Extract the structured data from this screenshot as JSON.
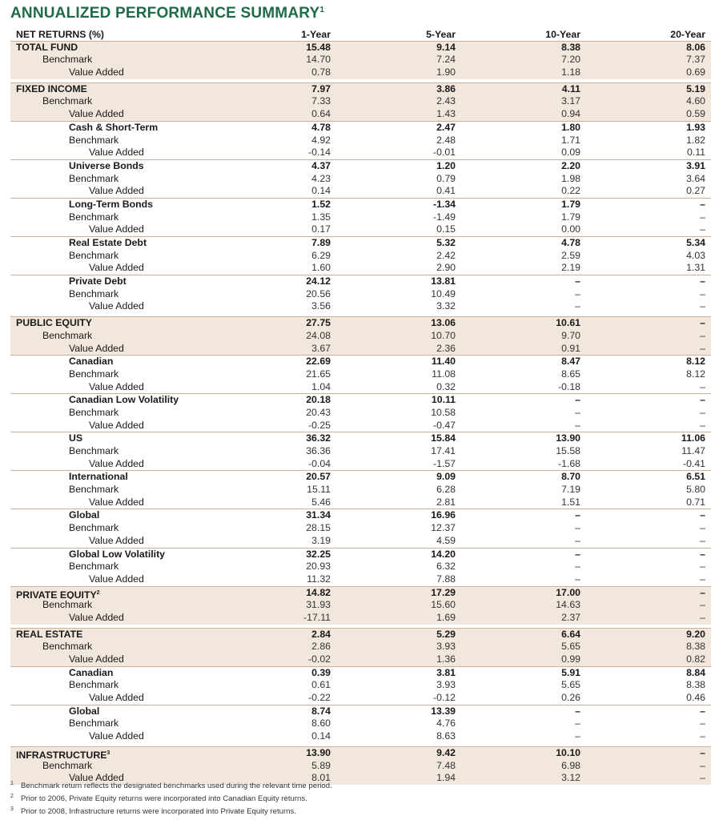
{
  "title": {
    "text": "ANNUALIZED PERFORMANCE SUMMARY",
    "sup": "1"
  },
  "header": {
    "label": "NET RETURNS (%)",
    "cols": [
      "1-Year",
      "5-Year",
      "10-Year",
      "20-Year"
    ]
  },
  "rows": [
    {
      "label": "TOTAL FUND",
      "level": 0,
      "bold": true,
      "shade": true,
      "v": [
        "15.48",
        "9.14",
        "8.38",
        "8.06"
      ]
    },
    {
      "label": "Benchmark",
      "level": 1,
      "shade": true,
      "v": [
        "14.70",
        "7.24",
        "7.20",
        "7.37"
      ]
    },
    {
      "label": "Value Added",
      "level": 2,
      "shade": true,
      "v": [
        "0.78",
        "1.90",
        "1.18",
        "0.69"
      ]
    },
    {
      "gap": true
    },
    {
      "label": "FIXED INCOME",
      "level": 0,
      "bold": true,
      "shade": true,
      "topline": true,
      "v": [
        "7.97",
        "3.86",
        "4.11",
        "5.19"
      ]
    },
    {
      "label": "Benchmark",
      "level": 1,
      "shade": true,
      "v": [
        "7.33",
        "2.43",
        "3.17",
        "4.60"
      ]
    },
    {
      "label": "Value Added",
      "level": 2,
      "shade": true,
      "v": [
        "0.64",
        "1.43",
        "0.94",
        "0.59"
      ]
    },
    {
      "label": "Cash & Short-Term",
      "level": 2,
      "bold": true,
      "topline": true,
      "v": [
        "4.78",
        "2.47",
        "1.80",
        "1.93"
      ]
    },
    {
      "label": "Benchmark",
      "level": 2,
      "v": [
        "4.92",
        "2.48",
        "1.71",
        "1.82"
      ]
    },
    {
      "label": "Value Added",
      "level": 3,
      "v": [
        "-0.14",
        "-0.01",
        "0.09",
        "0.11"
      ]
    },
    {
      "label": "Universe Bonds",
      "level": 2,
      "bold": true,
      "topline": true,
      "v": [
        "4.37",
        "1.20",
        "2.20",
        "3.91"
      ]
    },
    {
      "label": "Benchmark",
      "level": 2,
      "v": [
        "4.23",
        "0.79",
        "1.98",
        "3.64"
      ]
    },
    {
      "label": "Value Added",
      "level": 3,
      "v": [
        "0.14",
        "0.41",
        "0.22",
        "0.27"
      ]
    },
    {
      "label": "Long-Term Bonds",
      "level": 2,
      "bold": true,
      "topline": true,
      "v": [
        "1.52",
        "-1.34",
        "1.79",
        "–"
      ]
    },
    {
      "label": "Benchmark",
      "level": 2,
      "v": [
        "1.35",
        "-1.49",
        "1.79",
        "–"
      ]
    },
    {
      "label": "Value Added",
      "level": 3,
      "v": [
        "0.17",
        "0.15",
        "0.00",
        "–"
      ]
    },
    {
      "label": "Real Estate Debt",
      "level": 2,
      "bold": true,
      "topline": true,
      "v": [
        "7.89",
        "5.32",
        "4.78",
        "5.34"
      ]
    },
    {
      "label": "Benchmark",
      "level": 2,
      "v": [
        "6.29",
        "2.42",
        "2.59",
        "4.03"
      ]
    },
    {
      "label": "Value Added",
      "level": 3,
      "v": [
        "1.60",
        "2.90",
        "2.19",
        "1.31"
      ]
    },
    {
      "label": "Private Debt",
      "level": 2,
      "bold": true,
      "topline": true,
      "v": [
        "24.12",
        "13.81",
        "–",
        "–"
      ]
    },
    {
      "label": "Benchmark",
      "level": 2,
      "v": [
        "20.56",
        "10.49",
        "–",
        "–"
      ]
    },
    {
      "label": "Value Added",
      "level": 3,
      "v": [
        "3.56",
        "3.32",
        "–",
        "–"
      ]
    },
    {
      "gap": true
    },
    {
      "label": "PUBLIC EQUITY",
      "level": 0,
      "bold": true,
      "shade": true,
      "topline": true,
      "v": [
        "27.75",
        "13.06",
        "10.61",
        "–"
      ]
    },
    {
      "label": "Benchmark",
      "level": 1,
      "shade": true,
      "v": [
        "24.08",
        "10.70",
        "9.70",
        "–"
      ]
    },
    {
      "label": "Value Added",
      "level": 2,
      "shade": true,
      "v": [
        "3.67",
        "2.36",
        "0.91",
        "–"
      ]
    },
    {
      "label": "Canadian",
      "level": 2,
      "bold": true,
      "topline": true,
      "v": [
        "22.69",
        "11.40",
        "8.47",
        "8.12"
      ]
    },
    {
      "label": "Benchmark",
      "level": 2,
      "v": [
        "21.65",
        "11.08",
        "8.65",
        "8.12"
      ]
    },
    {
      "label": "Value Added",
      "level": 3,
      "v": [
        "1.04",
        "0.32",
        "-0.18",
        "–"
      ]
    },
    {
      "label": "Canadian Low Volatility",
      "level": 2,
      "bold": true,
      "topline": true,
      "v": [
        "20.18",
        "10.11",
        "–",
        "–"
      ]
    },
    {
      "label": "Benchmark",
      "level": 2,
      "v": [
        "20.43",
        "10.58",
        "–",
        "–"
      ]
    },
    {
      "label": "Value Added",
      "level": 3,
      "v": [
        "-0.25",
        "-0.47",
        "–",
        "–"
      ]
    },
    {
      "label": "US",
      "level": 2,
      "bold": true,
      "topline": true,
      "v": [
        "36.32",
        "15.84",
        "13.90",
        "11.06"
      ]
    },
    {
      "label": "Benchmark",
      "level": 2,
      "v": [
        "36.36",
        "17.41",
        "15.58",
        "11.47"
      ]
    },
    {
      "label": "Value Added",
      "level": 3,
      "v": [
        "-0.04",
        "-1.57",
        "-1.68",
        "-0.41"
      ]
    },
    {
      "label": "International",
      "level": 2,
      "bold": true,
      "topline": true,
      "v": [
        "20.57",
        "9.09",
        "8.70",
        "6.51"
      ]
    },
    {
      "label": "Benchmark",
      "level": 2,
      "v": [
        "15.11",
        "6.28",
        "7.19",
        "5.80"
      ]
    },
    {
      "label": "Value Added",
      "level": 3,
      "v": [
        "5.46",
        "2.81",
        "1.51",
        "0.71"
      ]
    },
    {
      "label": "Global",
      "level": 2,
      "bold": true,
      "topline": true,
      "v": [
        "31.34",
        "16.96",
        "–",
        "–"
      ]
    },
    {
      "label": "Benchmark",
      "level": 2,
      "v": [
        "28.15",
        "12.37",
        "–",
        "–"
      ]
    },
    {
      "label": "Value Added",
      "level": 3,
      "v": [
        "3.19",
        "4.59",
        "–",
        "–"
      ]
    },
    {
      "label": "Global Low Volatility",
      "level": 2,
      "bold": true,
      "topline": true,
      "v": [
        "32.25",
        "14.20",
        "–",
        "–"
      ]
    },
    {
      "label": "Benchmark",
      "level": 2,
      "v": [
        "20.93",
        "6.32",
        "–",
        "–"
      ]
    },
    {
      "label": "Value Added",
      "level": 3,
      "v": [
        "11.32",
        "7.88",
        "–",
        "–"
      ]
    },
    {
      "label": "PRIVATE EQUITY",
      "sup": "2",
      "level": 0,
      "bold": true,
      "shade": true,
      "topline": true,
      "v": [
        "14.82",
        "17.29",
        "17.00",
        "–"
      ]
    },
    {
      "label": "Benchmark",
      "level": 1,
      "shade": true,
      "v": [
        "31.93",
        "15.60",
        "14.63",
        "–"
      ]
    },
    {
      "label": "Value Added",
      "level": 2,
      "shade": true,
      "v": [
        "-17.11",
        "1.69",
        "2.37",
        "–"
      ]
    },
    {
      "gap": true
    },
    {
      "label": "REAL ESTATE",
      "level": 0,
      "bold": true,
      "shade": true,
      "topline": true,
      "v": [
        "2.84",
        "5.29",
        "6.64",
        "9.20"
      ]
    },
    {
      "label": "Benchmark",
      "level": 1,
      "shade": true,
      "v": [
        "2.86",
        "3.93",
        "5.65",
        "8.38"
      ]
    },
    {
      "label": "Value Added",
      "level": 2,
      "shade": true,
      "v": [
        "-0.02",
        "1.36",
        "0.99",
        "0.82"
      ]
    },
    {
      "label": "Canadian",
      "level": 2,
      "bold": true,
      "topline": true,
      "v": [
        "0.39",
        "3.81",
        "5.91",
        "8.84"
      ]
    },
    {
      "label": "Benchmark",
      "level": 2,
      "v": [
        "0.61",
        "3.93",
        "5.65",
        "8.38"
      ]
    },
    {
      "label": "Value Added",
      "level": 3,
      "v": [
        "-0.22",
        "-0.12",
        "0.26",
        "0.46"
      ]
    },
    {
      "label": "Global",
      "level": 2,
      "bold": true,
      "topline": true,
      "v": [
        "8.74",
        "13.39",
        "–",
        "–"
      ]
    },
    {
      "label": "Benchmark",
      "level": 2,
      "v": [
        "8.60",
        "4.76",
        "–",
        "–"
      ]
    },
    {
      "label": "Value Added",
      "level": 3,
      "v": [
        "0.14",
        "8.63",
        "–",
        "–"
      ]
    },
    {
      "gap": true
    },
    {
      "label": "INFRASTRUCTURE",
      "sup": "3",
      "level": 0,
      "bold": true,
      "shade": true,
      "topline": true,
      "v": [
        "13.90",
        "9.42",
        "10.10",
        "–"
      ]
    },
    {
      "label": "Benchmark",
      "level": 1,
      "shade": true,
      "v": [
        "5.89",
        "7.48",
        "6.98",
        "–"
      ]
    },
    {
      "label": "Value Added",
      "level": 2,
      "shade": true,
      "v": [
        "8.01",
        "1.94",
        "3.12",
        "–"
      ]
    }
  ],
  "footnotes": [
    {
      "num": "1",
      "text": "Benchmark return reflects the designated benchmarks used during the relevant time period."
    },
    {
      "num": "2",
      "text": "Prior to 2006, Private Equity returns were incorporated into Canadian Equity returns."
    },
    {
      "num": "3",
      "text": "Prior to 2008, Infrastructure returns were incorporated into Private Equity returns."
    }
  ]
}
